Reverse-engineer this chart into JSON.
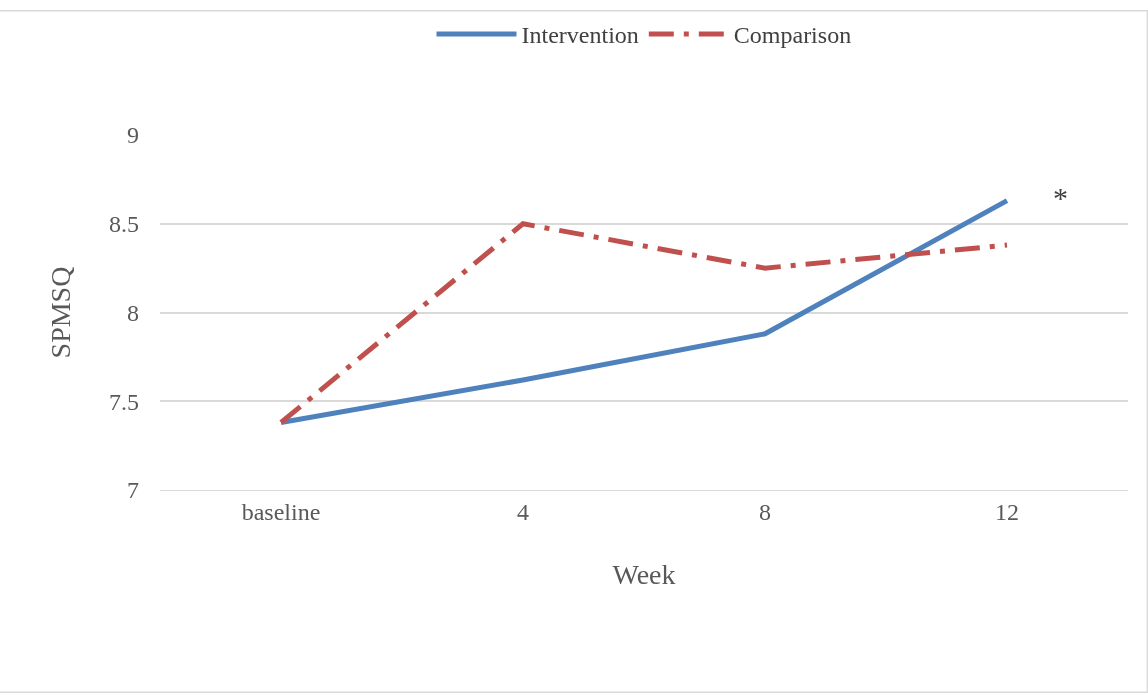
{
  "chart_data": {
    "type": "line",
    "xlabel": "Week",
    "ylabel": "SPMSQ",
    "categories": [
      "baseline",
      "4",
      "8",
      "12"
    ],
    "series": [
      {
        "name": "Intervention",
        "color": "#4f81bd",
        "values": [
          7.38,
          7.62,
          7.88,
          8.63
        ],
        "line_style": "solid"
      },
      {
        "name": "Comparison",
        "color": "#c0504d",
        "values": [
          7.38,
          8.5,
          8.25,
          8.38
        ],
        "line_style": "dashdot"
      }
    ],
    "ylim": [
      7,
      9
    ],
    "yticks": [
      7,
      7.5,
      8,
      8.5,
      9
    ],
    "grid": "y",
    "legend": "top",
    "marker": "none",
    "annotations": [
      {
        "text": "*",
        "x": "12",
        "y": 8.65
      }
    ]
  }
}
